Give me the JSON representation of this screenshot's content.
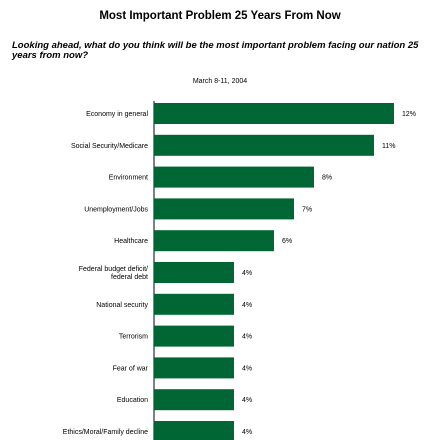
{
  "title": "Most Important Problem 25 Years From Now",
  "question": "Looking ahead, what do you think will be the most important problem facing our nation 25 years from now?",
  "date": "March 8-11, 2004",
  "colors": {
    "bar": "#006633",
    "axis": "#000000"
  },
  "chart_data": {
    "type": "bar",
    "orientation": "horizontal",
    "title": "Most Important Problem 25 Years From Now",
    "categories": [
      "Economy in general",
      "Social Security/Medicare",
      "Environment",
      "Unemployment/Jobs",
      "Healthcare",
      "Federal budget deficit/\nfederal debt",
      "National security",
      "Terrorism",
      "Fear of war",
      "Education",
      "Ethics/Moral/Family decline"
    ],
    "values": [
      12,
      11,
      8,
      7,
      6,
      4,
      4,
      4,
      4,
      4,
      4
    ],
    "value_labels": [
      "12%",
      "11%",
      "8%",
      "7%",
      "6%",
      "4%",
      "4%",
      "4%",
      "4%",
      "4%",
      "4%"
    ],
    "xlim": [
      0,
      12
    ],
    "unit": "%",
    "grid": false,
    "legend": "none"
  }
}
